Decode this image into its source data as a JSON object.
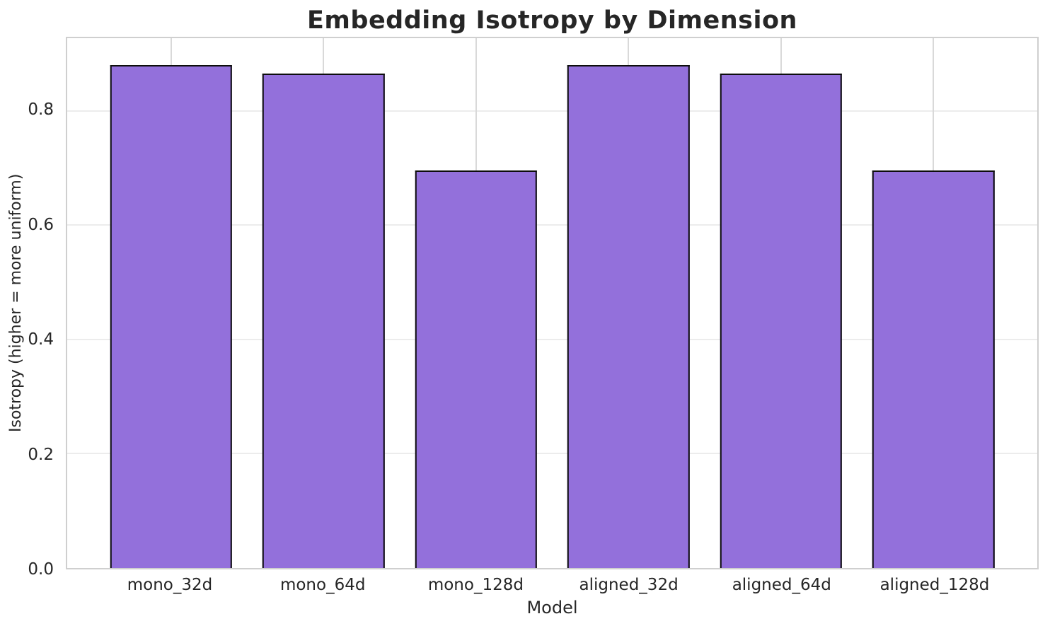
{
  "chart_data": {
    "type": "bar",
    "title": "Embedding Isotropy by Dimension",
    "xlabel": "Model",
    "ylabel": "Isotropy (higher = more uniform)",
    "categories": [
      "mono_32d",
      "mono_64d",
      "mono_128d",
      "aligned_32d",
      "aligned_64d",
      "aligned_128d"
    ],
    "values": [
      0.88,
      0.865,
      0.695,
      0.88,
      0.865,
      0.695
    ],
    "ytick_labels": [
      "0.0",
      "0.2",
      "0.4",
      "0.6",
      "0.8"
    ],
    "yticks": [
      0.0,
      0.2,
      0.4,
      0.6,
      0.8
    ],
    "ylim": [
      0,
      0.927
    ],
    "xlim_units": [
      -0.68,
      5.68
    ],
    "bar_width_units": 0.8,
    "grid": true,
    "legend": false,
    "bar_color": "#9370DB",
    "bar_edge_color": "#0d0d0d",
    "h_grid_color": "#ececec",
    "v_grid_color": "#d9d9d9",
    "spine_color": "#cfcfcf",
    "text_color": "#262626"
  }
}
